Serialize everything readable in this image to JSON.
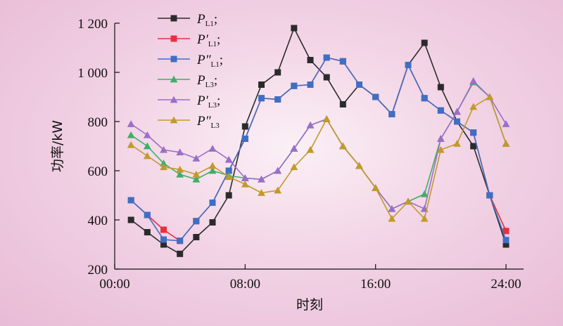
{
  "chart_data": {
    "type": "line",
    "xlabel": "时刻",
    "ylabel": "功率/kW",
    "xlim": [
      0,
      24
    ],
    "ylim": [
      200,
      1200
    ],
    "xticks": [
      0,
      8,
      16,
      24
    ],
    "xtick_labels": [
      "00:00",
      "08:00",
      "16:00",
      "24:00"
    ],
    "yticks": [
      200,
      400,
      600,
      800,
      1000,
      1200
    ],
    "ytick_labels": [
      "200",
      "400",
      "600",
      "800",
      "1 000",
      "1 200"
    ],
    "grid": false,
    "legend_position": "top-left",
    "x": [
      1,
      2,
      3,
      4,
      5,
      6,
      7,
      8,
      9,
      10,
      11,
      12,
      13,
      14,
      15,
      16,
      17,
      18,
      19,
      20,
      21,
      22,
      23,
      24
    ],
    "series": [
      {
        "name": "P_L1;",
        "legend": {
          "main": "P",
          "sup": "",
          "sub": "L1",
          "suffix": ";"
        },
        "color": "#2b2b2b",
        "marker": "square",
        "values": [
          400,
          350,
          300,
          262,
          330,
          390,
          500,
          780,
          950,
          1000,
          1180,
          1050,
          980,
          870,
          950,
          900,
          830,
          1030,
          1120,
          940,
          800,
          700,
          500,
          300
        ]
      },
      {
        "name": "P′_L1;",
        "legend": {
          "main": "P",
          "sup": "′",
          "sub": "L1",
          "suffix": ";"
        },
        "color": "#e8303e",
        "marker": "square",
        "values": [
          480,
          420,
          360,
          315,
          395,
          470,
          600,
          730,
          895,
          890,
          945,
          950,
          1060,
          1045,
          950,
          900,
          830,
          1030,
          895,
          845,
          800,
          755,
          500,
          355
        ]
      },
      {
        "name": "P″_L1;",
        "legend": {
          "main": "P",
          "sup": "″",
          "sub": "L1",
          "suffix": ";"
        },
        "color": "#3f6fc4",
        "marker": "square",
        "values": [
          480,
          420,
          320,
          315,
          395,
          470,
          600,
          730,
          895,
          890,
          945,
          950,
          1060,
          1045,
          950,
          900,
          830,
          1030,
          895,
          845,
          800,
          755,
          500,
          318
        ]
      },
      {
        "name": "P_L3;",
        "legend": {
          "main": "P",
          "sup": "",
          "sub": "L3",
          "suffix": ";"
        },
        "color": "#3fae6a",
        "marker": "triangle",
        "values": [
          745,
          700,
          630,
          585,
          565,
          600,
          580,
          570,
          565,
          600,
          690,
          785,
          810,
          700,
          620,
          530,
          445,
          475,
          505,
          730,
          840,
          960,
          900,
          710
        ]
      },
      {
        "name": "P′_L3;",
        "legend": {
          "main": "P",
          "sup": "′",
          "sub": "L3",
          "suffix": ";"
        },
        "color": "#9a6fc8",
        "marker": "triangle",
        "values": [
          790,
          745,
          685,
          675,
          650,
          690,
          645,
          570,
          565,
          600,
          690,
          785,
          810,
          700,
          620,
          530,
          445,
          475,
          445,
          730,
          840,
          965,
          900,
          790
        ]
      },
      {
        "name": "P″_L3",
        "legend": {
          "main": "P",
          "sup": "″",
          "sub": "L3",
          "suffix": ""
        },
        "color": "#c19a2b",
        "marker": "triangle",
        "values": [
          705,
          660,
          615,
          605,
          585,
          620,
          575,
          545,
          510,
          520,
          615,
          685,
          810,
          700,
          620,
          530,
          405,
          475,
          405,
          685,
          710,
          860,
          900,
          710
        ]
      }
    ]
  }
}
